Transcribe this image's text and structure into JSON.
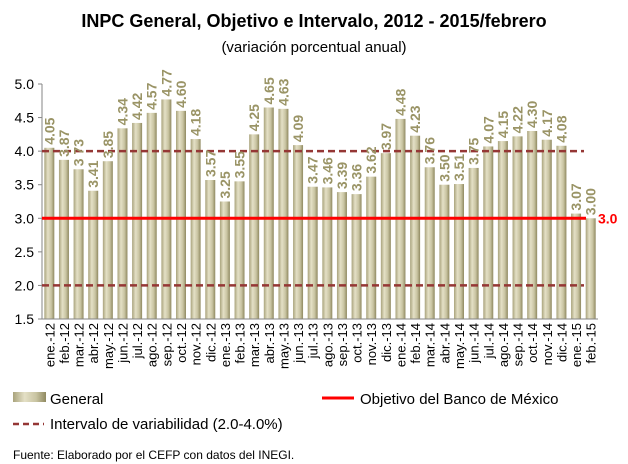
{
  "chart_data": {
    "type": "bar",
    "title": "INPC General, Objetivo e Intervalo, 2012 - 2015/febrero",
    "subtitle": "(variación porcentual anual)",
    "xlabel": "",
    "ylabel": "",
    "ylim": [
      1.5,
      5.0
    ],
    "yticks": [
      "1.5",
      "2.0",
      "2.5",
      "3.0",
      "3.5",
      "4.0",
      "4.5",
      "5.0"
    ],
    "grid": false,
    "categories": [
      "ene.-12",
      "feb.-12",
      "mar.-12",
      "abr.-12",
      "may.-12",
      "jun.-12",
      "jul.-12",
      "ago.-12",
      "sep.-12",
      "oct.-12",
      "nov.-12",
      "dic.-12",
      "ene.-13",
      "feb.-13",
      "mar.-13",
      "abr.-13",
      "may.-13",
      "jun.-13",
      "jul.-13",
      "ago.-13",
      "sep.-13",
      "oct.-13",
      "nov.-13",
      "dic.-13",
      "ene.-14",
      "feb.-14",
      "mar.-14",
      "abr.-14",
      "may.-14",
      "jun.-14",
      "jul.-14",
      "ago.-14",
      "sep.-14",
      "oct.-14",
      "nov.-14",
      "dic.-14",
      "ene.-15",
      "feb.-15"
    ],
    "series": [
      {
        "name": "General",
        "color": "#c9c4a2",
        "label_color": "#9a9466",
        "values": [
          4.05,
          3.87,
          3.73,
          3.41,
          3.85,
          4.34,
          4.42,
          4.57,
          4.77,
          4.6,
          4.18,
          3.57,
          3.25,
          3.55,
          4.25,
          4.65,
          4.63,
          4.09,
          3.47,
          3.46,
          3.39,
          3.36,
          3.62,
          3.97,
          4.48,
          4.23,
          3.76,
          3.5,
          3.51,
          3.75,
          4.07,
          4.15,
          4.22,
          4.3,
          4.17,
          4.08,
          3.07,
          3.0
        ],
        "labels": [
          "4.05",
          "3.87",
          "3 73",
          "3.41",
          "3.85",
          "4.34",
          "4.42",
          "4.57",
          "4.77",
          "4.60",
          "4.18",
          "3.57",
          "3.25",
          "3.55",
          "4.25",
          "4.65",
          "4.63",
          "4.09",
          "3.47",
          "3.46",
          "3.39",
          "3.36",
          "3.62",
          "3.97",
          "4.48",
          "4.23",
          "3.76",
          "3.50",
          "3.51",
          "3.75",
          "4.07",
          "4.15",
          "4.22",
          "4.30",
          "4.17",
          "4.08",
          "3.07",
          "3.00"
        ]
      }
    ],
    "reference_lines": [
      {
        "name": "Objetivo del Banco de México",
        "value": 3.0,
        "color": "#ff0000",
        "style": "solid",
        "label": "3.0"
      },
      {
        "name": "Intervalo de variabilidad (2.0-4.0%)",
        "values": [
          2.0,
          4.0
        ],
        "color": "#953735",
        "style": "dashed"
      }
    ],
    "legend": {
      "placement": "bottom",
      "items": [
        "General",
        "Objetivo del Banco de México",
        "Intervalo de variabilidad (2.0-4.0%)"
      ]
    },
    "source": "Fuente: Elaborado por el CEFP con datos del INEGI."
  }
}
